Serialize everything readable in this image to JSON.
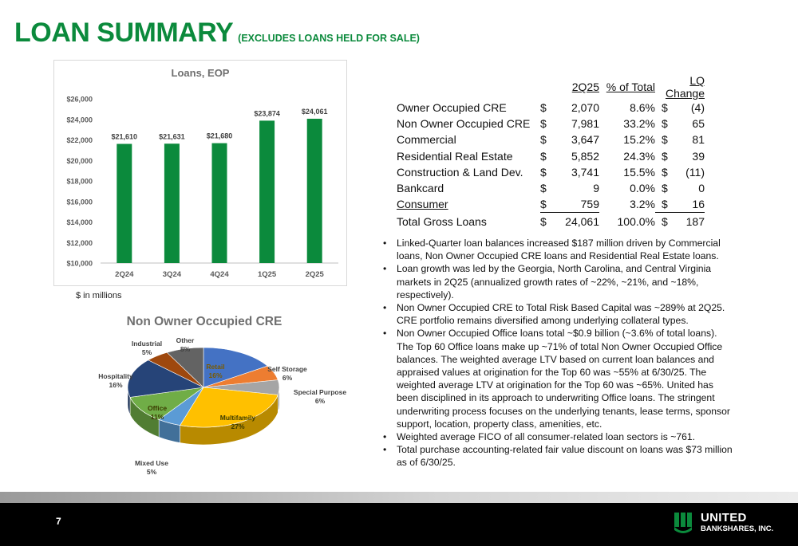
{
  "header": {
    "title": "LOAN SUMMARY",
    "subtitle": "(EXCLUDES LOANS HELD FOR SALE)"
  },
  "note": "$ in millions",
  "chart_data": [
    {
      "type": "bar",
      "title": "Loans, EOP",
      "categories": [
        "2Q24",
        "3Q24",
        "4Q24",
        "1Q25",
        "2Q25"
      ],
      "values": [
        21610,
        21631,
        21680,
        23874,
        24061
      ],
      "data_labels": [
        "$21,610",
        "$21,631",
        "$21,680",
        "$23,874",
        "$24,061"
      ],
      "yticks": [
        "$10,000",
        "$12,000",
        "$14,000",
        "$16,000",
        "$18,000",
        "$20,000",
        "$22,000",
        "$24,000",
        "$26,000"
      ],
      "ylim": [
        10000,
        26000
      ],
      "color": "#0b8a3c",
      "grid": false
    },
    {
      "type": "pie",
      "title": "Non Owner Occupied CRE",
      "slices": [
        {
          "name": "Retail",
          "value": 16,
          "label": "16%",
          "color": "#4472c4"
        },
        {
          "name": "Self Storage",
          "value": 6,
          "label": "6%",
          "color": "#ed7d31"
        },
        {
          "name": "Special Purpose",
          "value": 6,
          "label": "6%",
          "color": "#a5a5a5"
        },
        {
          "name": "Multifamily",
          "value": 27,
          "label": "27%",
          "color": "#ffc000"
        },
        {
          "name": "Mixed Use",
          "value": 5,
          "label": "5%",
          "color": "#5b9bd5"
        },
        {
          "name": "Office",
          "value": 11,
          "label": "11%",
          "color": "#70ad47"
        },
        {
          "name": "Hospitality",
          "value": 16,
          "label": "16%",
          "color": "#264478"
        },
        {
          "name": "Industrial",
          "value": 5,
          "label": "5%",
          "color": "#9e480e"
        },
        {
          "name": "Other",
          "value": 8,
          "label": "8%",
          "color": "#636363"
        }
      ]
    }
  ],
  "table": {
    "headers": [
      "2Q25",
      "% of Total",
      "LQ Change"
    ],
    "rows": [
      {
        "category": "Owner Occupied CRE",
        "d1": "$",
        "amount": "2,070",
        "pct": "8.6%",
        "d2": "$",
        "change": "(4)"
      },
      {
        "category": "Non Owner Occupied CRE",
        "d1": "$",
        "amount": "7,981",
        "pct": "33.2%",
        "d2": "$",
        "change": "65"
      },
      {
        "category": "Commercial",
        "d1": "$",
        "amount": "3,647",
        "pct": "15.2%",
        "d2": "$",
        "change": "81"
      },
      {
        "category": "Residential Real Estate",
        "d1": "$",
        "amount": "5,852",
        "pct": "24.3%",
        "d2": "$",
        "change": "39"
      },
      {
        "category": "Construction & Land Dev.",
        "d1": "$",
        "amount": "3,741",
        "pct": "15.5%",
        "d2": "$",
        "change": "(11)"
      },
      {
        "category": "Bankcard",
        "d1": "$",
        "amount": "9",
        "pct": "0.0%",
        "d2": "$",
        "change": "0"
      },
      {
        "category": "Consumer",
        "d1": "$",
        "amount": "759",
        "pct": "3.2%",
        "d2": "$",
        "change": "16"
      }
    ],
    "total": {
      "category": "Total Gross Loans",
      "d1": "$",
      "amount": "24,061",
      "pct": "100.0%",
      "d2": "$",
      "change": "187"
    }
  },
  "bullets": [
    "Linked-Quarter loan balances increased $187 million driven by Commercial loans, Non Owner Occupied CRE loans and Residential Real Estate loans.",
    "Loan growth was led by the Georgia, North Carolina, and Central Virginia markets in 2Q25 (annualized growth rates of ~22%, ~21%, and ~18%, respectively).",
    "Non Owner Occupied CRE to Total Risk Based Capital was ~289% at 2Q25. CRE portfolio remains diversified among underlying collateral types.",
    "Non Owner Occupied Office loans total ~$0.9 billion (~3.6% of total loans). The Top 60 Office loans make up ~71% of total Non Owner Occupied Office balances. The weighted average LTV based on current loan balances and appraised values at origination for the Top 60 was ~55% at 6/30/25. The weighted average LTV at origination for the Top 60 was ~65%. United has been disciplined in its approach to underwriting Office loans. The stringent underwriting process focuses on the underlying tenants, lease terms, sponsor support, location, property class, amenities, etc.",
    "Weighted average FICO of all consumer-related loan sectors is ~761.",
    "Total purchase accounting-related fair value discount on loans was $73 million as of 6/30/25."
  ],
  "footer": {
    "page_number": "7",
    "logo_line1": "UNITED",
    "logo_line2": "BANKSHARES, INC."
  }
}
